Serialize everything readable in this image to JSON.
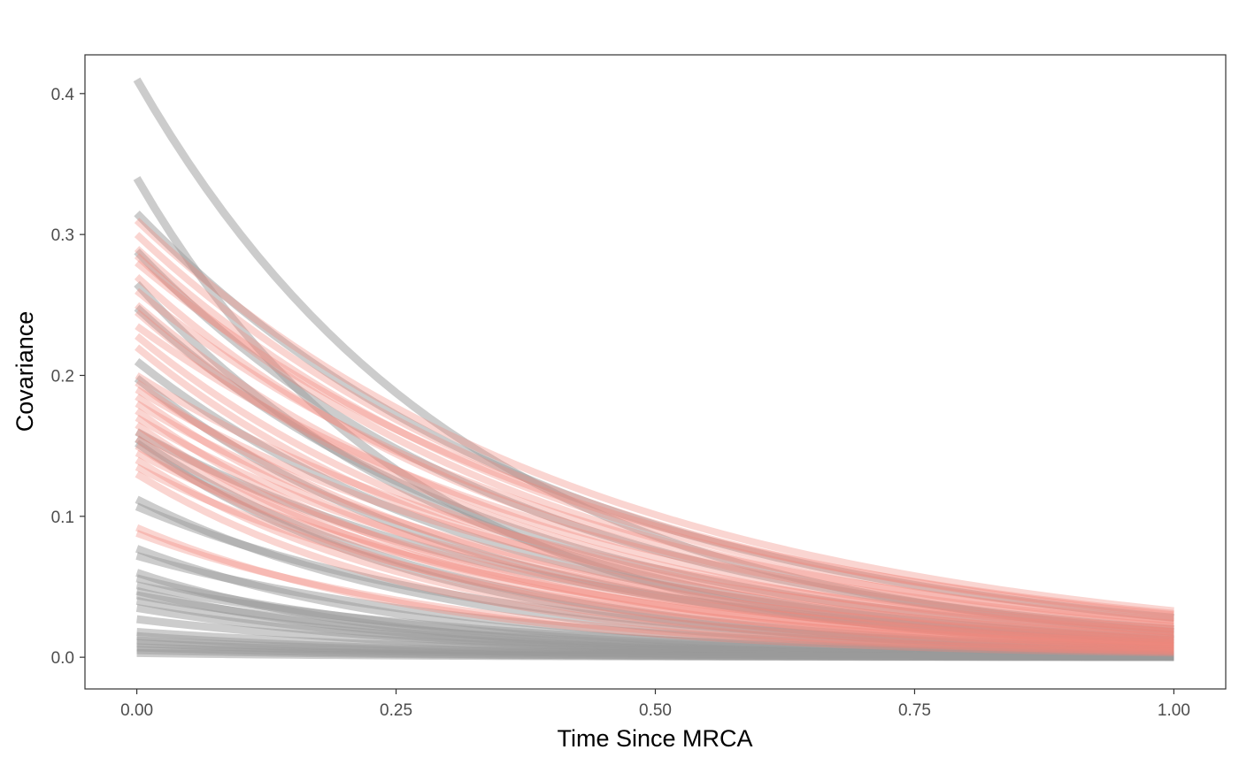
{
  "chart_data": {
    "type": "line",
    "title": "",
    "xlabel": "Time Since MRCA",
    "ylabel": "Covariance",
    "xlim": [
      0,
      1
    ],
    "ylim": [
      -0.0225,
      0.4275
    ],
    "x_ticks": [
      0,
      0.25,
      0.5,
      0.75,
      1
    ],
    "x_tick_labels": [
      "0.00",
      "0.25",
      "0.50",
      "0.75",
      "1.00"
    ],
    "y_ticks": [
      0,
      0.1,
      0.2,
      0.3,
      0.4
    ],
    "y_tick_labels": [
      "0.0",
      "0.1",
      "0.2",
      "0.3",
      "0.4"
    ],
    "grid": false,
    "legend": "none",
    "function": "covariance = y0 * exp(-k * x)",
    "series_groups": [
      {
        "color": "#999999",
        "curves": [
          {
            "y0": 0.41,
            "y1": 0.018
          },
          {
            "y0": 0.34,
            "y1": 0.008
          },
          {
            "y0": 0.315,
            "y1": 0.028
          },
          {
            "y0": 0.288,
            "y1": 0.02
          },
          {
            "y0": 0.265,
            "y1": 0.012
          },
          {
            "y0": 0.248,
            "y1": 0.016
          },
          {
            "y0": 0.21,
            "y1": 0.013
          },
          {
            "y0": 0.198,
            "y1": 0.01
          },
          {
            "y0": 0.16,
            "y1": 0.012
          },
          {
            "y0": 0.155,
            "y1": 0.006
          },
          {
            "y0": 0.152,
            "y1": 0.005
          },
          {
            "y0": 0.112,
            "y1": 0.004
          },
          {
            "y0": 0.107,
            "y1": 0.006
          },
          {
            "y0": 0.077,
            "y1": 0.002
          },
          {
            "y0": 0.072,
            "y1": 0.004
          },
          {
            "y0": 0.06,
            "y1": 0.001
          },
          {
            "y0": 0.056,
            "y1": 0.002
          },
          {
            "y0": 0.051,
            "y1": 0.003
          },
          {
            "y0": 0.047,
            "y1": 0.001
          },
          {
            "y0": 0.044,
            "y1": 0.002
          },
          {
            "y0": 0.04,
            "y1": 0.001
          },
          {
            "y0": 0.035,
            "y1": 0.001
          },
          {
            "y0": 0.027,
            "y1": 0.001
          },
          {
            "y0": 0.018,
            "y1": 0.001
          },
          {
            "y0": 0.015,
            "y1": 0.0005
          },
          {
            "y0": 0.012,
            "y1": 0.0005
          },
          {
            "y0": 0.01,
            "y1": 0.0003
          },
          {
            "y0": 0.007,
            "y1": 0.0002
          },
          {
            "y0": 0.005,
            "y1": 0.0002
          },
          {
            "y0": 0.003,
            "y1": 0.0001
          }
        ]
      },
      {
        "color": "#f0887a",
        "curves": [
          {
            "y0": 0.31,
            "y1": 0.033
          },
          {
            "y0": 0.3,
            "y1": 0.03
          },
          {
            "y0": 0.29,
            "y1": 0.028
          },
          {
            "y0": 0.285,
            "y1": 0.025
          },
          {
            "y0": 0.28,
            "y1": 0.031
          },
          {
            "y0": 0.27,
            "y1": 0.022
          },
          {
            "y0": 0.26,
            "y1": 0.026
          },
          {
            "y0": 0.25,
            "y1": 0.02
          },
          {
            "y0": 0.245,
            "y1": 0.018
          },
          {
            "y0": 0.235,
            "y1": 0.024
          },
          {
            "y0": 0.228,
            "y1": 0.016
          },
          {
            "y0": 0.22,
            "y1": 0.014
          },
          {
            "y0": 0.2,
            "y1": 0.02
          },
          {
            "y0": 0.195,
            "y1": 0.012
          },
          {
            "y0": 0.19,
            "y1": 0.018
          },
          {
            "y0": 0.185,
            "y1": 0.01
          },
          {
            "y0": 0.18,
            "y1": 0.015
          },
          {
            "y0": 0.175,
            "y1": 0.008
          },
          {
            "y0": 0.17,
            "y1": 0.013
          },
          {
            "y0": 0.165,
            "y1": 0.007
          },
          {
            "y0": 0.16,
            "y1": 0.011
          },
          {
            "y0": 0.155,
            "y1": 0.009
          },
          {
            "y0": 0.15,
            "y1": 0.006
          },
          {
            "y0": 0.145,
            "y1": 0.01
          },
          {
            "y0": 0.14,
            "y1": 0.005
          },
          {
            "y0": 0.135,
            "y1": 0.008
          },
          {
            "y0": 0.13,
            "y1": 0.004
          },
          {
            "y0": 0.092,
            "y1": 0.003
          },
          {
            "y0": 0.088,
            "y1": 0.004
          }
        ]
      }
    ]
  }
}
